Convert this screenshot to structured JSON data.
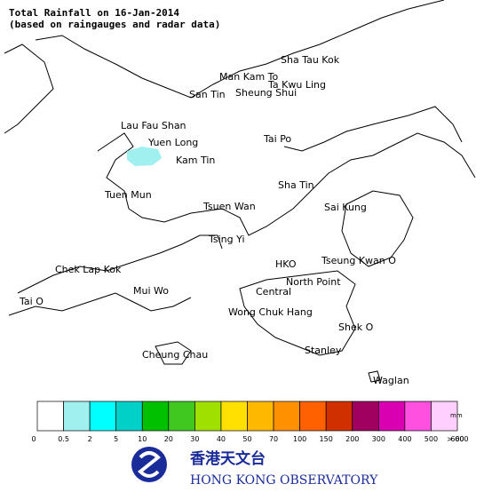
{
  "header": {
    "title": "Total Rainfall on 16-Jan-2014",
    "subtitle": "(based on raingauges and radar data)"
  },
  "places": [
    "Sha Tau Kok",
    "Man Kam To",
    "Ta Kwu Ling",
    "San Tin",
    "Sheung Shui",
    "Lau Fau Shan",
    "Yuen Long",
    "Kam Tin",
    "Tai Po",
    "Tuen Mun",
    "Sha Tin",
    "Tsuen Wan",
    "Sai Kung",
    "Tsing Yi",
    "Chek Lap Kok",
    "HKO",
    "Tseung Kwan O",
    "Mui Wo",
    "Central",
    "North Point",
    "Tai O",
    "Wong Chuk Hang",
    "Shek O",
    "Cheung Chau",
    "Stanley",
    "Waglan"
  ],
  "legend": {
    "unit": "mm",
    "colors": [
      "#ffffff",
      "#a0f0f0",
      "#00ffff",
      "#00d0c8",
      "#00c000",
      "#40c820",
      "#a0e000",
      "#ffe000",
      "#ffb800",
      "#ff9000",
      "#ff6000",
      "#d03000",
      "#a00060",
      "#d800b0",
      "#ff50e0",
      "#ffd0ff"
    ],
    "labels": [
      "0",
      "0.5",
      "2",
      "5",
      "10",
      "20",
      "30",
      "40",
      "50",
      "70",
      "100",
      "150",
      "200",
      "300",
      "400",
      "500",
      "600",
      "> 600"
    ]
  },
  "logo": {
    "chinese": "香港天文台",
    "english": "HONG KONG OBSERVATORY"
  }
}
